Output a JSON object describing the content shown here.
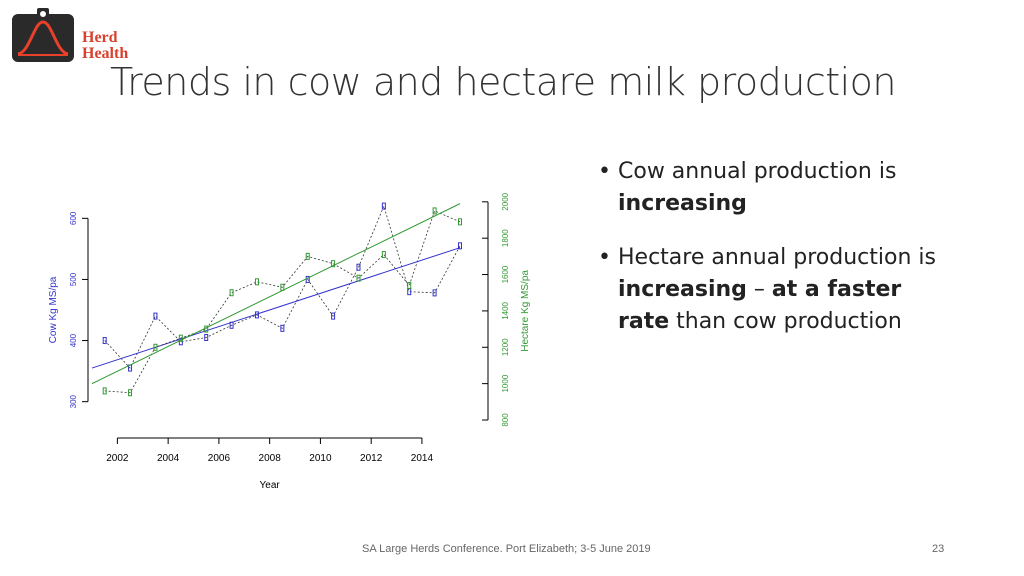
{
  "logo": {
    "line1": "Herd",
    "line2": "Health",
    "icon": "bell-curve-logo-icon",
    "colors": {
      "badge": "#2a2a2a",
      "curve": "#e8402a",
      "text": "#d9412e"
    }
  },
  "slide": {
    "title": "Trends in cow and hectare milk production",
    "bullets": [
      {
        "parts": [
          {
            "text": "Cow annual production is "
          },
          {
            "text": "increasing",
            "bold": true
          }
        ]
      },
      {
        "parts": [
          {
            "text": "Hectare annual production is "
          },
          {
            "text": "increasing",
            "bold": true
          },
          {
            "text": " – "
          },
          {
            "text": "at a faster rate",
            "bold": true
          },
          {
            "text": " than cow production"
          }
        ]
      }
    ],
    "footer": "SA Large Herds Conference. Port Elizabeth; 3-5 June 2019",
    "page_number": "23"
  },
  "chart_data": {
    "type": "scatter",
    "title": "",
    "xlabel": "Year",
    "ylabel_left": "Cow  Kg MS/pa",
    "ylabel_right": "Hectare Kg MS/pa",
    "x_ticks": [
      2002,
      2004,
      2006,
      2008,
      2010,
      2012,
      2014
    ],
    "y_left_ticks": [
      300,
      400,
      500,
      600
    ],
    "y_right_ticks": [
      800,
      1000,
      1200,
      1400,
      1600,
      1800,
      2000
    ],
    "xlim": [
      2001,
      2015.5
    ],
    "ylim_left": [
      270,
      630
    ],
    "ylim_right": [
      800,
      2010
    ],
    "grid": false,
    "series": [
      {
        "axis": "left",
        "color": "#3333cc",
        "x": [
          2001.5,
          2002.5,
          2003.5,
          2004.5,
          2005.5,
          2006.5,
          2007.5,
          2008.5,
          2009.5,
          2010.5,
          2011.5,
          2012.5,
          2013.5,
          2014.5,
          2015.5
        ],
        "values": [
          400,
          355,
          440,
          398,
          405,
          425,
          442,
          420,
          500,
          440,
          520,
          620,
          480,
          478,
          555
        ],
        "trend": [
          355,
          552
        ]
      },
      {
        "axis": "right",
        "color": "#339933",
        "x": [
          2001.5,
          2002.5,
          2003.5,
          2004.5,
          2005.5,
          2006.5,
          2007.5,
          2008.5,
          2009.5,
          2010.5,
          2011.5,
          2012.5,
          2013.5,
          2014.5,
          2015.5
        ],
        "values": [
          960,
          950,
          1200,
          1250,
          1300,
          1500,
          1560,
          1530,
          1700,
          1660,
          1580,
          1710,
          1540,
          1950,
          1890
        ],
        "trend": [
          1000,
          1990
        ]
      }
    ]
  }
}
